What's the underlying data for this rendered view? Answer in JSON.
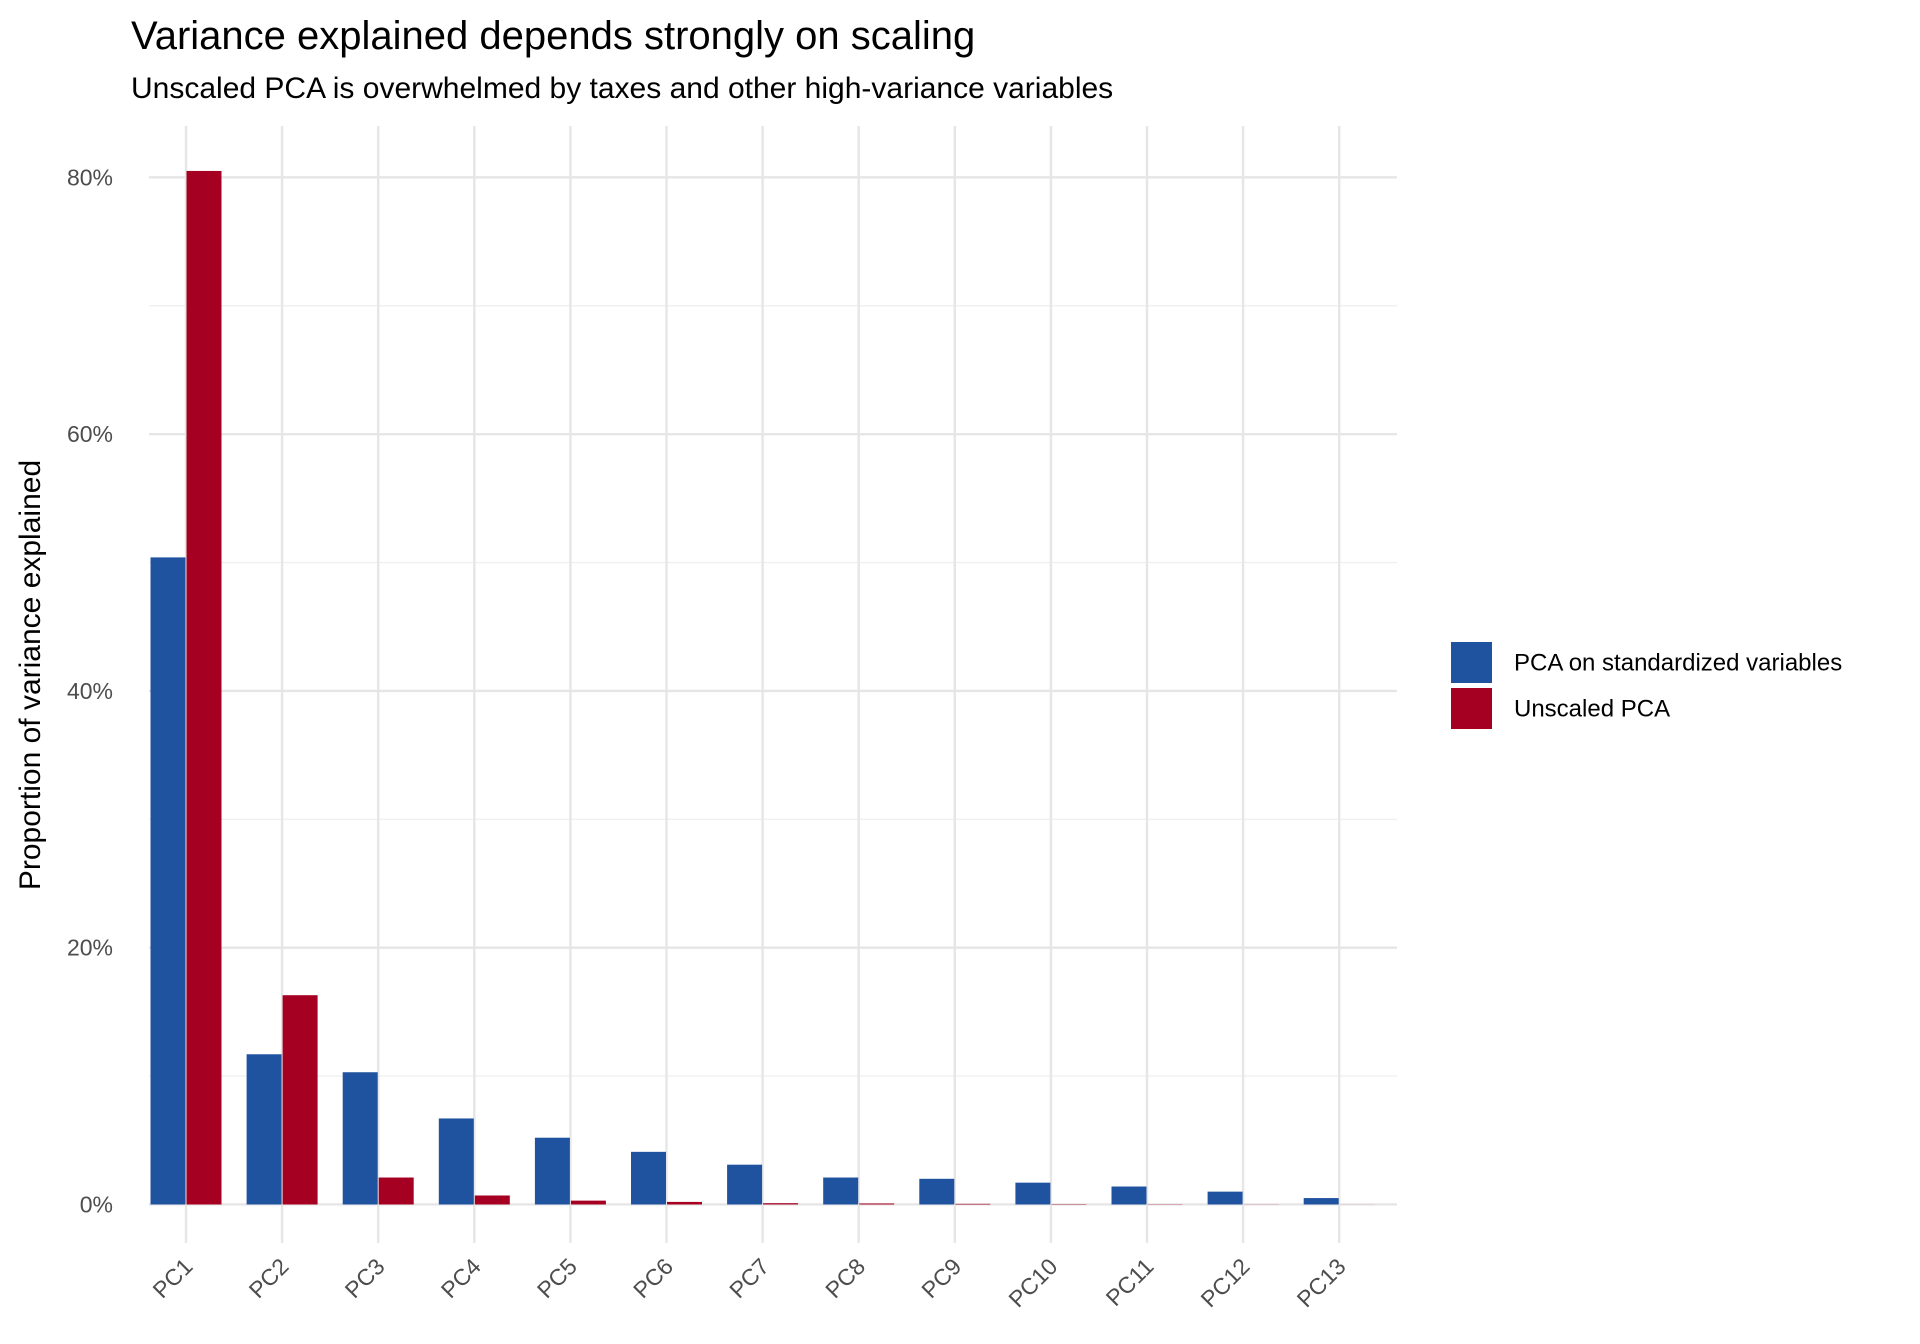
{
  "chart_data": {
    "type": "bar",
    "title": "Variance explained depends strongly on scaling",
    "subtitle": "Unscaled PCA is overwhelmed by taxes and other high-variance variables",
    "xlabel": "",
    "ylabel": "Proportion of variance explained",
    "categories": [
      "PC1",
      "PC2",
      "PC3",
      "PC4",
      "PC5",
      "PC6",
      "PC7",
      "PC8",
      "PC9",
      "PC10",
      "PC11",
      "PC12",
      "PC13"
    ],
    "series": [
      {
        "name": "PCA on standardized variables",
        "color": "#1f53a0",
        "values": [
          0.504,
          0.117,
          0.103,
          0.067,
          0.052,
          0.041,
          0.031,
          0.021,
          0.02,
          0.017,
          0.014,
          0.01,
          0.005
        ]
      },
      {
        "name": "Unscaled PCA",
        "color": "#a50021",
        "values": [
          0.805,
          0.163,
          0.021,
          0.007,
          0.003,
          0.002,
          0.001,
          0.0008,
          0.0005,
          0.0003,
          0.0002,
          0.0001,
          5e-05
        ]
      }
    ],
    "ylim": [
      -0.03,
      0.84
    ],
    "yticks": [
      0,
      0.2,
      0.4,
      0.6,
      0.8
    ],
    "ytick_labels": [
      "0%",
      "20%",
      "40%",
      "60%",
      "80%"
    ],
    "grid": true,
    "legend_position": "right",
    "xtick_rotation": "45deg"
  }
}
